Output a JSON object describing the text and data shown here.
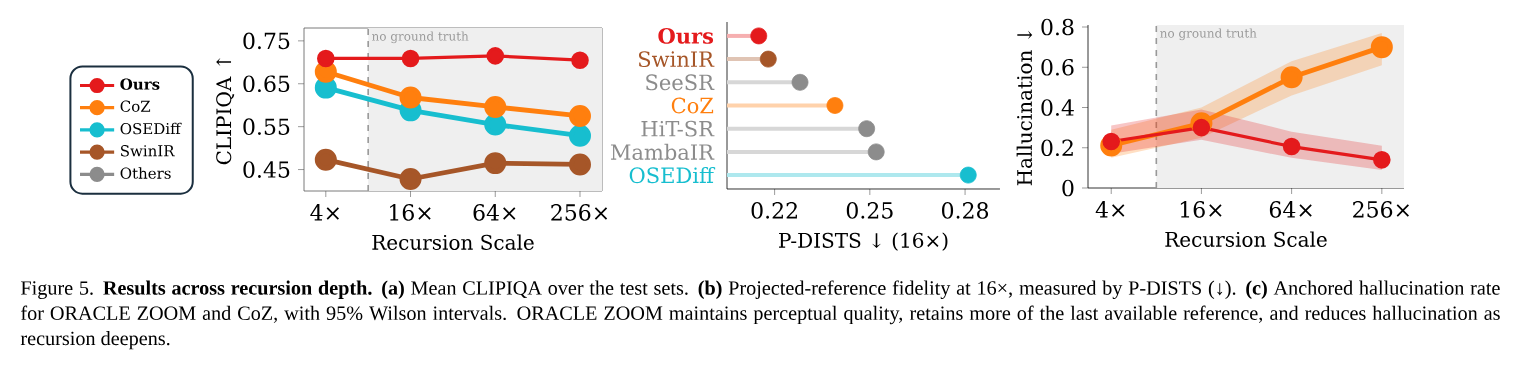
{
  "chart_data": [
    {
      "type": "line",
      "ylabel": "CLIPIQA ↑",
      "xlabel": "Recursion Scale",
      "log": "x",
      "marker": "circle",
      "legend": "left",
      "x": [
        4,
        16,
        64,
        256
      ],
      "xlim": [
        2.8,
        367
      ],
      "xticks": [
        {
          "value": 4,
          "label": "4×"
        },
        {
          "value": 16,
          "label": "16×"
        },
        {
          "value": 64,
          "label": "64×"
        },
        {
          "value": 256,
          "label": "256×"
        }
      ],
      "ylim": [
        0.4,
        0.78
      ],
      "yticks": [
        0.45,
        0.55,
        0.65,
        0.75
      ],
      "ref_lines": [
        {
          "axis": "x",
          "value": 8,
          "label": "no ground truth",
          "color": "#999999",
          "line_style": "dashed"
        }
      ],
      "bands": [
        {
          "axis": "x",
          "from": 8,
          "to": 367,
          "color": "#efefef"
        }
      ],
      "series": [
        {
          "name": "**Ours**",
          "color": "#e41a1c",
          "values": [
            0.709,
            0.709,
            0.715,
            0.705
          ]
        },
        {
          "name": "CoZ",
          "color": "#ff7f0e",
          "values": [
            0.678,
            0.618,
            0.596,
            0.575
          ]
        },
        {
          "name": "OSEDiff",
          "color": "#17becf",
          "values": [
            0.641,
            0.588,
            0.555,
            0.529
          ]
        },
        {
          "name": "SwinIR",
          "color": "#a65628",
          "values": [
            0.473,
            0.428,
            0.465,
            0.462
          ]
        },
        {
          "name": "Others",
          "color": "#8c8c8c",
          "values": [
            null,
            null,
            null,
            null
          ]
        }
      ],
      "annotations": [
        "Figure 5. **Results across recursion depth.** **(a)** Mean CLIPIQA over the test sets. **(b)** Projected-reference fidelity at 16×, measured by P-DISTS (↓). **(c)** Anchored hallucination rate for ORACLE ZOOM and CoZ, with 95% Wilson intervals. ORACLE ZOOM maintains perceptual quality, retains more of the last available reference, and reduces hallucination as recursion deepens."
      ]
    },
    {
      "type": "lollipop",
      "orientation": "horizontal",
      "xlabel": "P-DISTS ↓ (16×)",
      "categories": [
        "**Ours**",
        "SwinIR",
        "SeeSR",
        "CoZ",
        "HiT-SR",
        "MambaIR",
        "OSEDiff"
      ],
      "values": [
        0.215,
        0.218,
        0.228,
        0.239,
        0.249,
        0.252,
        0.281
      ],
      "colors": [
        "#e41a1c",
        "#a65628",
        "#8c8c8c",
        "#ff7f0e",
        "#8c8c8c",
        "#8c8c8c",
        "#17becf"
      ],
      "xlim": [
        0.205,
        0.291
      ],
      "xticks": [
        0.22,
        0.25,
        0.28
      ]
    },
    {
      "type": "line",
      "ylabel": "Hallucination ↓",
      "xlabel": "Recursion Scale",
      "log": "x",
      "marker": "circle",
      "x": [
        4,
        16,
        64,
        256
      ],
      "xlim": [
        2.8,
        360
      ],
      "xticks": [
        {
          "value": 4,
          "label": "4×"
        },
        {
          "value": 16,
          "label": "16×"
        },
        {
          "value": 64,
          "label": "64×"
        },
        {
          "value": 256,
          "label": "256×"
        }
      ],
      "ylim": [
        0,
        0.81
      ],
      "yticks": [
        0,
        0.2,
        0.4,
        0.6,
        0.8
      ],
      "ref_lines": [
        {
          "axis": "x",
          "value": 8,
          "label": "no ground truth",
          "color": "#999999",
          "line_style": "dashed"
        }
      ],
      "bands": [
        {
          "axis": "x",
          "from": 8,
          "to": 360,
          "color": "#efefef"
        }
      ],
      "series": [
        {
          "color": "#e41a1c",
          "values": [
            0.231,
            0.3,
            0.206,
            0.14
          ],
          "lower": [
            0.17,
            0.24,
            0.15,
            0.09
          ],
          "upper": [
            0.31,
            0.39,
            0.28,
            0.21
          ]
        },
        {
          "color": "#ff7f0e",
          "values": [
            0.211,
            0.322,
            0.55,
            0.7
          ],
          "lower": [
            0.15,
            0.25,
            0.46,
            0.61
          ],
          "upper": [
            0.29,
            0.4,
            0.63,
            0.77
          ]
        }
      ]
    }
  ]
}
